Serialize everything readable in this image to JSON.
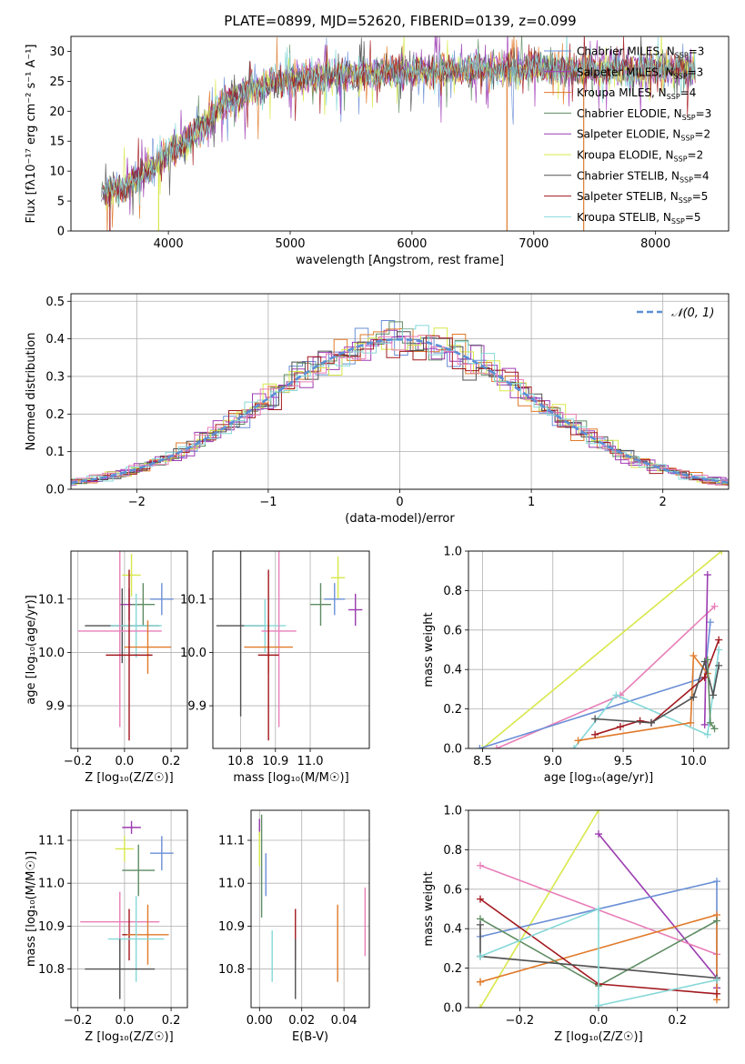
{
  "figure_title": "PLATE=0899, MJD=52620, FIBERID=0139, z=0.099",
  "colors": {
    "chabrier_miles": "#6a8fd6",
    "salpeter_miles": "#a23cb8",
    "kroupa_miles": "#e07a2a",
    "chabrier_elodie": "#5e8c62",
    "salpeter_elodie": "#9b3bb0",
    "kroupa_elodie": "#d8e84a",
    "chabrier_stelib": "#505050",
    "salpeter_stelib": "#a3181e",
    "kroupa_stelib": "#86d8d8",
    "pink": "#e87fb8",
    "normal": "#5b8fd6"
  },
  "chart_data": [
    {
      "id": "spectrum",
      "type": "line",
      "title": "PLATE=0899, MJD=52620, FIBERID=0139, z=0.099",
      "xlabel": "wavelength [Angstrom, rest frame]",
      "ylabel": "Flux [fλ10⁻¹⁷ erg cm⁻² s⁻¹ A⁻¹]",
      "xlim": [
        3200,
        8600
      ],
      "ylim": [
        0,
        32.5
      ],
      "xticks": [
        4000,
        5000,
        6000,
        7000,
        8000
      ],
      "yticks": [
        0,
        5,
        10,
        15,
        20,
        25,
        30
      ],
      "grid": false,
      "legend_position": "top-right",
      "continuum": {
        "x": [
          3450,
          3700,
          3950,
          4200,
          4500,
          4800,
          5100,
          5400,
          5800,
          6200,
          6600,
          7000,
          7400,
          7800,
          8300
        ],
        "y": [
          6,
          8,
          12,
          16,
          22,
          24.5,
          25.5,
          26,
          26.5,
          27,
          27,
          27.5,
          27,
          27,
          27
        ]
      },
      "series": [
        {
          "name": "Chabrier MILES, N_SSP=3",
          "color": "#6a8fd6"
        },
        {
          "name": "Salpeter MILES, N_SSP=3",
          "color": "#a23cb8"
        },
        {
          "name": "Kroupa MILES, N_SSP=4",
          "color": "#e07a2a"
        },
        {
          "name": "Chabrier ELODIE, N_SSP=3",
          "color": "#5e8c62"
        },
        {
          "name": "Salpeter ELODIE, N_SSP=2",
          "color": "#9b3bb0"
        },
        {
          "name": "Kroupa ELODIE, N_SSP=2",
          "color": "#d8e84a"
        },
        {
          "name": "Chabrier STELIB, N_SSP=4",
          "color": "#505050"
        },
        {
          "name": "Salpeter STELIB, N_SSP=5",
          "color": "#a3181e"
        },
        {
          "name": "Kroupa STELIB, N_SSP=5",
          "color": "#86d8d8"
        }
      ],
      "legend_labels": [
        {
          "base": "Chabrier MILES, N",
          "sub": "SSP",
          "tail": "=3",
          "color": "#6a8fd6"
        },
        {
          "base": "Salpeter MILES, N",
          "sub": "SSP",
          "tail": "=3",
          "color": "#a23cb8"
        },
        {
          "base": "Kroupa MILES, N",
          "sub": "SSP",
          "tail": "=4",
          "color": "#e07a2a"
        },
        {
          "base": "Chabrier ELODIE, N",
          "sub": "SSP",
          "tail": "=3",
          "color": "#5e8c62"
        },
        {
          "base": "Salpeter ELODIE, N",
          "sub": "SSP",
          "tail": "=2",
          "color": "#9b3bb0"
        },
        {
          "base": "Kroupa ELODIE, N",
          "sub": "SSP",
          "tail": "=2",
          "color": "#d8e84a"
        },
        {
          "base": "Chabrier STELIB, N",
          "sub": "SSP",
          "tail": "=4",
          "color": "#505050"
        },
        {
          "base": "Salpeter STELIB, N",
          "sub": "SSP",
          "tail": "=5",
          "color": "#a3181e"
        },
        {
          "base": "Kroupa STELIB, N",
          "sub": "SSP",
          "tail": "=5",
          "color": "#86d8d8"
        }
      ],
      "drops": [
        {
          "x": 3520,
          "color": "#a3181e"
        },
        {
          "x": 3920,
          "color": "#d8e84a"
        },
        {
          "x": 6780,
          "color": "#e07a2a"
        },
        {
          "x": 7410,
          "color": "#e07a2a"
        }
      ]
    },
    {
      "id": "residuals",
      "type": "histogram",
      "xlabel": "(data-model)/error",
      "ylabel": "Normed distribution",
      "xlim": [
        -2.5,
        2.5
      ],
      "ylim": [
        0,
        0.52
      ],
      "xticks": [
        -2,
        -1,
        0,
        1,
        2
      ],
      "yticks": [
        0.0,
        0.1,
        0.2,
        0.3,
        0.4,
        0.5
      ],
      "grid": true,
      "legend_position": "top-right",
      "legend_label": "𝒩(0, 1)",
      "bin_width": 0.1,
      "series_colors": [
        "#6a8fd6",
        "#a23cb8",
        "#e07a2a",
        "#5e8c62",
        "#9b3bb0",
        "#d8e84a",
        "#505050",
        "#a3181e",
        "#86d8d8",
        "#e87fb8"
      ],
      "normal_color": "#5b8fd6"
    },
    {
      "id": "age-vs-Z",
      "type": "errorbar",
      "xlabel": "Z [log₁₀(Z/Z☉)]",
      "ylabel": "age  [log₁₀(age/yr)]",
      "xlim": [
        -0.23,
        0.27
      ],
      "ylim": [
        9.82,
        10.19
      ],
      "xticks": [
        -0.2,
        0.0,
        0.2
      ],
      "yticks": [
        9.9,
        10.0,
        10.1
      ],
      "grid": true,
      "points": [
        {
          "x": 0.03,
          "y": 10.145,
          "xerr": 0.04,
          "yerr": 0.04,
          "color": "#d8e84a"
        },
        {
          "x": 0.16,
          "y": 10.1,
          "xerr": 0.05,
          "yerr": 0.03,
          "color": "#6a8fd6"
        },
        {
          "x": 0.02,
          "y": 10.09,
          "xerr": 0.04,
          "yerr": 0.03,
          "color": "#9b3bb0"
        },
        {
          "x": 0.08,
          "y": 10.09,
          "xerr": 0.05,
          "yerr": 0.04,
          "color": "#5e8c62"
        },
        {
          "x": -0.01,
          "y": 10.05,
          "xerr": 0.16,
          "yerr": 0.07,
          "color": "#505050"
        },
        {
          "x": 0.05,
          "y": 10.05,
          "xerr": 0.11,
          "yerr": 0.06,
          "color": "#86d8d8"
        },
        {
          "x": -0.02,
          "y": 10.04,
          "xerr": 0.18,
          "yerr": 0.18,
          "color": "#e87fb8"
        },
        {
          "x": 0.1,
          "y": 10.01,
          "xerr": 0.1,
          "yerr": 0.05,
          "color": "#e07a2a"
        },
        {
          "x": 0.02,
          "y": 9.995,
          "xerr": 0.1,
          "yerr": 0.16,
          "color": "#a3181e"
        }
      ]
    },
    {
      "id": "age-vs-mass",
      "type": "errorbar",
      "xlabel": "mass [log₁₀(M/M☉)]",
      "ylabel": "",
      "xlim": [
        10.72,
        11.17
      ],
      "ylim": [
        9.82,
        10.19
      ],
      "xticks": [
        10.8,
        10.9,
        11.0
      ],
      "yticks": [
        9.9,
        10.0,
        10.1
      ],
      "grid": true,
      "points": [
        {
          "x": 11.08,
          "y": 10.14,
          "xerr": 0.02,
          "yerr": 0.04,
          "color": "#d8e84a"
        },
        {
          "x": 11.07,
          "y": 10.1,
          "xerr": 0.03,
          "yerr": 0.03,
          "color": "#6a8fd6"
        },
        {
          "x": 11.13,
          "y": 10.08,
          "xerr": 0.02,
          "yerr": 0.03,
          "color": "#9b3bb0"
        },
        {
          "x": 11.03,
          "y": 10.09,
          "xerr": 0.03,
          "yerr": 0.04,
          "color": "#5e8c62"
        },
        {
          "x": 10.8,
          "y": 10.05,
          "xerr": 0.07,
          "yerr": 0.17,
          "color": "#505050"
        },
        {
          "x": 10.87,
          "y": 10.05,
          "xerr": 0.06,
          "yerr": 0.05,
          "color": "#86d8d8"
        },
        {
          "x": 10.91,
          "y": 10.04,
          "xerr": 0.05,
          "yerr": 0.18,
          "color": "#e87fb8"
        },
        {
          "x": 10.88,
          "y": 10.01,
          "xerr": 0.07,
          "yerr": 0.05,
          "color": "#e07a2a"
        },
        {
          "x": 10.88,
          "y": 9.995,
          "xerr": 0.03,
          "yerr": 0.16,
          "color": "#a3181e"
        }
      ]
    },
    {
      "id": "weight-vs-age",
      "type": "line",
      "xlabel": "age  [log₁₀(age/yr)]",
      "ylabel": "mass weight",
      "xlim": [
        8.4,
        10.25
      ],
      "ylim": [
        0,
        1
      ],
      "xticks": [
        8.5,
        9.0,
        9.5,
        10.0
      ],
      "yticks": [
        0.0,
        0.2,
        0.4,
        0.6,
        0.8,
        1.0
      ],
      "grid": true,
      "series": [
        {
          "color": "#d8e84a",
          "x": [
            8.5,
            10.2
          ],
          "y": [
            0.0,
            1.0
          ]
        },
        {
          "color": "#e87fb8",
          "x": [
            8.6,
            9.48,
            10.15
          ],
          "y": [
            0.0,
            0.27,
            0.72
          ]
        },
        {
          "color": "#6a8fd6",
          "x": [
            8.48,
            10.08,
            10.12
          ],
          "y": [
            0.0,
            0.36,
            0.64
          ]
        },
        {
          "color": "#9b3bb0",
          "x": [
            10.08,
            10.1
          ],
          "y": [
            0.12,
            0.88
          ]
        },
        {
          "color": "#86d8d8",
          "x": [
            9.15,
            9.45,
            10.1,
            10.18
          ],
          "y": [
            0.0,
            0.27,
            0.07,
            0.5
          ]
        },
        {
          "color": "#e07a2a",
          "x": [
            9.18,
            9.98,
            10.0,
            10.1
          ],
          "y": [
            0.04,
            0.13,
            0.47,
            0.38
          ]
        },
        {
          "color": "#a3181e",
          "x": [
            9.3,
            9.48,
            9.62,
            9.7,
            10.08,
            10.18
          ],
          "y": [
            0.07,
            0.11,
            0.14,
            0.13,
            0.36,
            0.55
          ]
        },
        {
          "color": "#505050",
          "x": [
            9.3,
            9.7,
            10.0,
            10.08,
            10.14,
            10.18
          ],
          "y": [
            0.15,
            0.13,
            0.26,
            0.44,
            0.27,
            0.42
          ]
        },
        {
          "color": "#5e8c62",
          "x": [
            10.1,
            10.12,
            10.15
          ],
          "y": [
            0.45,
            0.13,
            0.1
          ]
        }
      ]
    },
    {
      "id": "mass-vs-Z",
      "type": "errorbar",
      "xlabel": "Z [log₁₀(Z/Z☉)]",
      "ylabel": "mass [log₁₀(M/M☉)]",
      "xlim": [
        -0.23,
        0.27
      ],
      "ylim": [
        10.71,
        11.17
      ],
      "xticks": [
        -0.2,
        0.0,
        0.2
      ],
      "yticks": [
        10.8,
        10.9,
        11.0,
        11.1
      ],
      "grid": true,
      "points": [
        {
          "x": 0.03,
          "y": 11.13,
          "xerr": 0.04,
          "yerr": 0.015,
          "color": "#9b3bb0"
        },
        {
          "x": 0.0,
          "y": 11.08,
          "xerr": 0.04,
          "yerr": 0.03,
          "color": "#d8e84a"
        },
        {
          "x": 0.16,
          "y": 11.07,
          "xerr": 0.05,
          "yerr": 0.04,
          "color": "#6a8fd6"
        },
        {
          "x": 0.06,
          "y": 11.03,
          "xerr": 0.07,
          "yerr": 0.06,
          "color": "#5e8c62"
        },
        {
          "x": -0.02,
          "y": 10.91,
          "xerr": 0.17,
          "yerr": 0.07,
          "color": "#e87fb8"
        },
        {
          "x": 0.02,
          "y": 10.88,
          "xerr": 0.03,
          "yerr": 0.06,
          "color": "#a3181e"
        },
        {
          "x": 0.1,
          "y": 10.88,
          "xerr": 0.09,
          "yerr": 0.07,
          "color": "#e07a2a"
        },
        {
          "x": 0.05,
          "y": 10.87,
          "xerr": 0.12,
          "yerr": 0.1,
          "color": "#86d8d8"
        },
        {
          "x": -0.02,
          "y": 10.8,
          "xerr": 0.15,
          "yerr": 0.07,
          "color": "#505050"
        }
      ]
    },
    {
      "id": "mass-vs-EBV",
      "type": "errorbar",
      "xlabel": "E(B-V)",
      "ylabel": "",
      "xlim": [
        -0.004,
        0.052
      ],
      "ylim": [
        10.71,
        11.17
      ],
      "xticks": [
        0.0,
        0.02,
        0.04
      ],
      "yticks": [
        10.8,
        10.9,
        11.0,
        11.1
      ],
      "grid": true,
      "points": [
        {
          "x": 0.0,
          "y": 11.13,
          "xerr": 0.0,
          "yerr": 0.02,
          "color": "#9b3bb0"
        },
        {
          "x": 0.0,
          "y": 11.08,
          "xerr": 0.0,
          "yerr": 0.04,
          "color": "#d8e84a"
        },
        {
          "x": 0.001,
          "y": 11.04,
          "xerr": 0.0,
          "yerr": 0.12,
          "color": "#5e8c62"
        },
        {
          "x": 0.003,
          "y": 11.02,
          "xerr": 0.0,
          "yerr": 0.05,
          "color": "#6a8fd6"
        },
        {
          "x": 0.006,
          "y": 10.83,
          "xerr": 0.0,
          "yerr": 0.06,
          "color": "#86d8d8"
        },
        {
          "x": 0.017,
          "y": 10.88,
          "xerr": 0.0,
          "yerr": 0.06,
          "color": "#a3181e"
        },
        {
          "x": 0.017,
          "y": 10.8,
          "xerr": 0.0,
          "yerr": 0.07,
          "color": "#505050"
        },
        {
          "x": 0.037,
          "y": 10.86,
          "xerr": 0.0,
          "yerr": 0.09,
          "color": "#e07a2a"
        },
        {
          "x": 0.05,
          "y": 10.91,
          "xerr": 0.0,
          "yerr": 0.08,
          "color": "#e87fb8"
        }
      ]
    },
    {
      "id": "weight-vs-Z",
      "type": "line",
      "xlabel": "Z [log₁₀(Z/Z☉)]",
      "ylabel": "mass weight",
      "xlim": [
        -0.33,
        0.33
      ],
      "ylim": [
        0,
        1
      ],
      "xticks": [
        -0.2,
        0.0,
        0.2
      ],
      "yticks": [
        0.0,
        0.2,
        0.4,
        0.6,
        0.8,
        1.0
      ],
      "grid": true,
      "series": [
        {
          "color": "#d8e84a",
          "x": [
            -0.3,
            0.0
          ],
          "y": [
            0.0,
            1.0
          ]
        },
        {
          "color": "#9b3bb0",
          "x": [
            0.0,
            0.3,
            0.3
          ],
          "y": [
            0.88,
            0.15,
            0.1
          ]
        },
        {
          "color": "#e87fb8",
          "x": [
            -0.3,
            0.3
          ],
          "y": [
            0.72,
            0.27
          ]
        },
        {
          "color": "#6a8fd6",
          "x": [
            -0.3,
            0.3,
            0.3
          ],
          "y": [
            0.36,
            0.64,
            0.14
          ]
        },
        {
          "color": "#e07a2a",
          "x": [
            -0.3,
            -0.3,
            0.3,
            0.3
          ],
          "y": [
            0.13,
            0.13,
            0.47,
            0.04
          ]
        },
        {
          "color": "#5e8c62",
          "x": [
            -0.3,
            0.0,
            0.3
          ],
          "y": [
            0.45,
            0.11,
            0.44
          ]
        },
        {
          "color": "#a3181e",
          "x": [
            -0.3,
            0.0,
            0.3
          ],
          "y": [
            0.55,
            0.12,
            0.07
          ]
        },
        {
          "color": "#505050",
          "x": [
            -0.3,
            -0.3,
            0.3
          ],
          "y": [
            0.42,
            0.26,
            0.15
          ]
        },
        {
          "color": "#86d8d8",
          "x": [
            -0.3,
            0.0,
            0.0,
            0.3
          ],
          "y": [
            0.26,
            0.5,
            0.01,
            0.14
          ]
        }
      ]
    }
  ]
}
